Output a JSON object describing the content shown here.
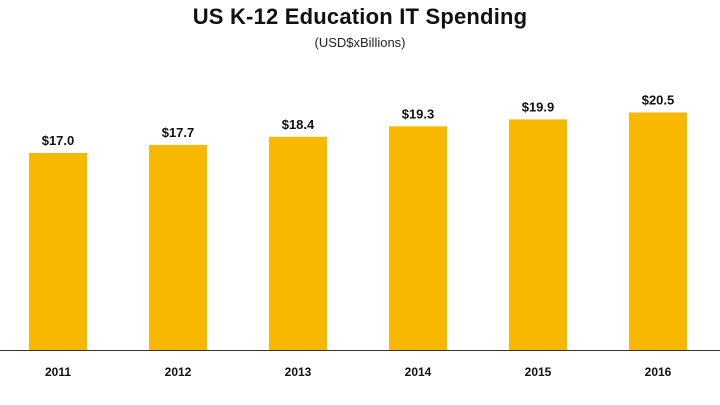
{
  "chart_data": {
    "type": "bar",
    "title": "US K-12 Education IT Spending",
    "subtitle": "(USD$xBillions)",
    "categories": [
      "2011",
      "2012",
      "2013",
      "2014",
      "2015",
      "2016"
    ],
    "values": [
      17.0,
      17.7,
      18.4,
      19.3,
      19.9,
      20.5
    ],
    "data_labels": [
      "$17.0",
      "$17.7",
      "$18.4",
      "$19.3",
      "$19.9",
      "$20.5"
    ],
    "xlabel": "",
    "ylabel": "",
    "ylim": [
      0,
      23.3
    ],
    "grid": false,
    "legend": "none",
    "bar_color": "#F8B800",
    "axis_color": "#333333"
  }
}
